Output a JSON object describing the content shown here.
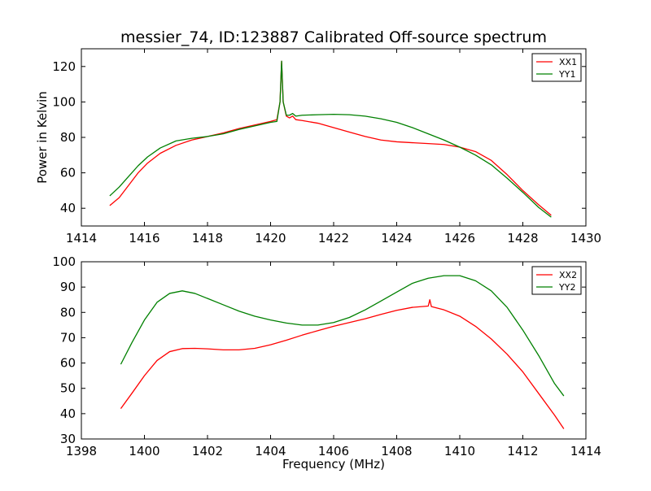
{
  "chart_data": [
    {
      "type": "line",
      "title": "messier_74, ID:123887 Calibrated Off-source spectrum",
      "xlabel": "",
      "ylabel": "Power in Kelvin",
      "xlim": [
        1414,
        1430
      ],
      "ylim": [
        30,
        130
      ],
      "xticks": [
        1414,
        1416,
        1418,
        1420,
        1422,
        1424,
        1426,
        1428,
        1430
      ],
      "yticks": [
        40,
        60,
        80,
        100,
        120
      ],
      "grid": false,
      "legend": "top-right",
      "series": [
        {
          "name": "XX1",
          "color": "#ff0000",
          "points": [
            [
              1414.9,
              41.5
            ],
            [
              1415.2,
              46
            ],
            [
              1415.5,
              53
            ],
            [
              1415.8,
              60
            ],
            [
              1416.1,
              65.5
            ],
            [
              1416.5,
              71
            ],
            [
              1417,
              75.5
            ],
            [
              1417.5,
              78.5
            ],
            [
              1418,
              80.5
            ],
            [
              1418.5,
              82.5
            ],
            [
              1419,
              85
            ],
            [
              1419.5,
              87
            ],
            [
              1420,
              89
            ],
            [
              1420.2,
              90
            ],
            [
              1420.3,
              100
            ],
            [
              1420.35,
              123
            ],
            [
              1420.4,
              100
            ],
            [
              1420.5,
              92
            ],
            [
              1420.6,
              91
            ],
            [
              1420.7,
              92
            ],
            [
              1420.8,
              90
            ],
            [
              1421,
              89.5
            ],
            [
              1421.5,
              88
            ],
            [
              1422,
              85.5
            ],
            [
              1422.5,
              83
            ],
            [
              1423,
              80.5
            ],
            [
              1423.5,
              78.5
            ],
            [
              1424,
              77.5
            ],
            [
              1424.5,
              77
            ],
            [
              1425,
              76.5
            ],
            [
              1425.5,
              76
            ],
            [
              1426,
              74.5
            ],
            [
              1426.5,
              72
            ],
            [
              1427,
              67
            ],
            [
              1427.5,
              59
            ],
            [
              1428,
              50
            ],
            [
              1428.5,
              42
            ],
            [
              1428.9,
              36
            ]
          ]
        },
        {
          "name": "YY1",
          "color": "#008000",
          "points": [
            [
              1414.9,
              47
            ],
            [
              1415.2,
              52
            ],
            [
              1415.5,
              58
            ],
            [
              1415.8,
              64
            ],
            [
              1416.1,
              69
            ],
            [
              1416.5,
              74
            ],
            [
              1417,
              78
            ],
            [
              1417.5,
              79.5
            ],
            [
              1418,
              80.5
            ],
            [
              1418.5,
              82
            ],
            [
              1419,
              84.5
            ],
            [
              1419.5,
              86.5
            ],
            [
              1420,
              88.5
            ],
            [
              1420.2,
              89
            ],
            [
              1420.3,
              100
            ],
            [
              1420.35,
              123
            ],
            [
              1420.4,
              100
            ],
            [
              1420.5,
              92.5
            ],
            [
              1420.6,
              92.5
            ],
            [
              1420.7,
              93.5
            ],
            [
              1420.8,
              92
            ],
            [
              1421,
              92.5
            ],
            [
              1421.5,
              92.8
            ],
            [
              1422,
              93
            ],
            [
              1422.5,
              92.8
            ],
            [
              1423,
              92
            ],
            [
              1423.5,
              90.5
            ],
            [
              1424,
              88.5
            ],
            [
              1424.5,
              85.5
            ],
            [
              1425,
              82
            ],
            [
              1425.5,
              78.5
            ],
            [
              1426,
              74.5
            ],
            [
              1426.5,
              70
            ],
            [
              1427,
              64.5
            ],
            [
              1427.5,
              57
            ],
            [
              1428,
              49
            ],
            [
              1428.5,
              40.5
            ],
            [
              1428.9,
              35
            ]
          ]
        }
      ]
    },
    {
      "type": "line",
      "title": "",
      "xlabel": "Frequency (MHz)",
      "ylabel": "",
      "xlim": [
        1398,
        1414
      ],
      "ylim": [
        30,
        100
      ],
      "xticks": [
        1398,
        1400,
        1402,
        1404,
        1406,
        1408,
        1410,
        1412,
        1414
      ],
      "yticks": [
        30,
        40,
        50,
        60,
        70,
        80,
        90,
        100
      ],
      "grid": false,
      "legend": "top-right",
      "series": [
        {
          "name": "XX2",
          "color": "#ff0000",
          "points": [
            [
              1399.25,
              42
            ],
            [
              1399.6,
              48
            ],
            [
              1400,
              55
            ],
            [
              1400.4,
              61
            ],
            [
              1400.8,
              64.5
            ],
            [
              1401.2,
              65.7
            ],
            [
              1401.6,
              65.8
            ],
            [
              1402,
              65.6
            ],
            [
              1402.5,
              65.2
            ],
            [
              1403,
              65.2
            ],
            [
              1403.5,
              65.8
            ],
            [
              1404,
              67.2
            ],
            [
              1404.5,
              69
            ],
            [
              1405,
              71
            ],
            [
              1405.5,
              72.8
            ],
            [
              1406,
              74.5
            ],
            [
              1406.5,
              76
            ],
            [
              1407,
              77.5
            ],
            [
              1407.5,
              79.2
            ],
            [
              1408,
              80.8
            ],
            [
              1408.5,
              82
            ],
            [
              1409,
              82.5
            ],
            [
              1409.05,
              85
            ],
            [
              1409.1,
              82.3
            ],
            [
              1409.5,
              81
            ],
            [
              1410,
              78.5
            ],
            [
              1410.5,
              74.5
            ],
            [
              1411,
              69.5
            ],
            [
              1411.5,
              63.5
            ],
            [
              1412,
              56.5
            ],
            [
              1412.5,
              48
            ],
            [
              1413,
              39.5
            ],
            [
              1413.3,
              34
            ]
          ]
        },
        {
          "name": "YY2",
          "color": "#008000",
          "points": [
            [
              1399.25,
              59.5
            ],
            [
              1399.6,
              68
            ],
            [
              1400,
              77
            ],
            [
              1400.4,
              84
            ],
            [
              1400.8,
              87.5
            ],
            [
              1401.2,
              88.5
            ],
            [
              1401.6,
              87.5
            ],
            [
              1402,
              85.5
            ],
            [
              1402.5,
              83
            ],
            [
              1403,
              80.5
            ],
            [
              1403.5,
              78.5
            ],
            [
              1404,
              77
            ],
            [
              1404.5,
              75.8
            ],
            [
              1405,
              75
            ],
            [
              1405.5,
              75
            ],
            [
              1406,
              76
            ],
            [
              1406.5,
              78
            ],
            [
              1407,
              81
            ],
            [
              1407.5,
              84.5
            ],
            [
              1408,
              88
            ],
            [
              1408.5,
              91.5
            ],
            [
              1409,
              93.5
            ],
            [
              1409.5,
              94.5
            ],
            [
              1410,
              94.5
            ],
            [
              1410.5,
              92.5
            ],
            [
              1411,
              88.5
            ],
            [
              1411.5,
              82
            ],
            [
              1412,
              73
            ],
            [
              1412.5,
              63
            ],
            [
              1413,
              52
            ],
            [
              1413.3,
              47
            ]
          ]
        }
      ]
    }
  ]
}
